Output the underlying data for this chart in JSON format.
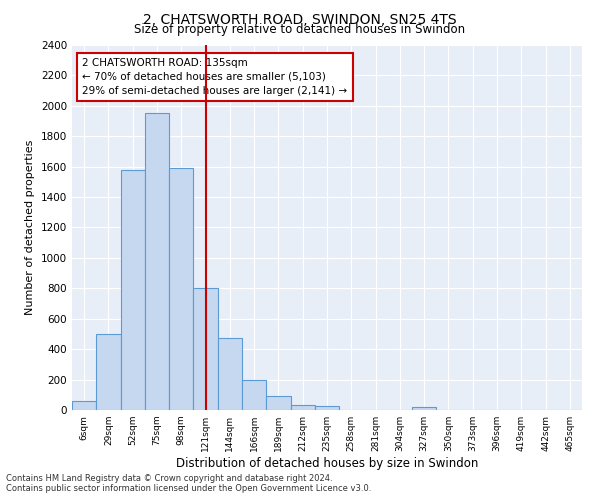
{
  "title": "2, CHATSWORTH ROAD, SWINDON, SN25 4TS",
  "subtitle": "Size of property relative to detached houses in Swindon",
  "xlabel": "Distribution of detached houses by size in Swindon",
  "ylabel": "Number of detached properties",
  "bar_labels": [
    "6sqm",
    "29sqm",
    "52sqm",
    "75sqm",
    "98sqm",
    "121sqm",
    "144sqm",
    "166sqm",
    "189sqm",
    "212sqm",
    "235sqm",
    "258sqm",
    "281sqm",
    "304sqm",
    "327sqm",
    "350sqm",
    "373sqm",
    "396sqm",
    "419sqm",
    "442sqm",
    "465sqm"
  ],
  "bar_values": [
    60,
    500,
    1580,
    1950,
    1590,
    800,
    475,
    195,
    90,
    35,
    25,
    0,
    0,
    0,
    20,
    0,
    0,
    0,
    0,
    0,
    0
  ],
  "bar_color": "#c5d8f0",
  "bar_edge_color": "#5b9bd5",
  "vline_color": "#cc0000",
  "annotation_title": "2 CHATSWORTH ROAD: 135sqm",
  "annotation_line1": "← 70% of detached houses are smaller (5,103)",
  "annotation_line2": "29% of semi-detached houses are larger (2,141) →",
  "annotation_box_color": "#cc0000",
  "ylim": [
    0,
    2400
  ],
  "yticks": [
    0,
    200,
    400,
    600,
    800,
    1000,
    1200,
    1400,
    1600,
    1800,
    2000,
    2200,
    2400
  ],
  "footnote1": "Contains HM Land Registry data © Crown copyright and database right 2024.",
  "footnote2": "Contains public sector information licensed under the Open Government Licence v3.0.",
  "plot_bg_color": "#e8eef7"
}
